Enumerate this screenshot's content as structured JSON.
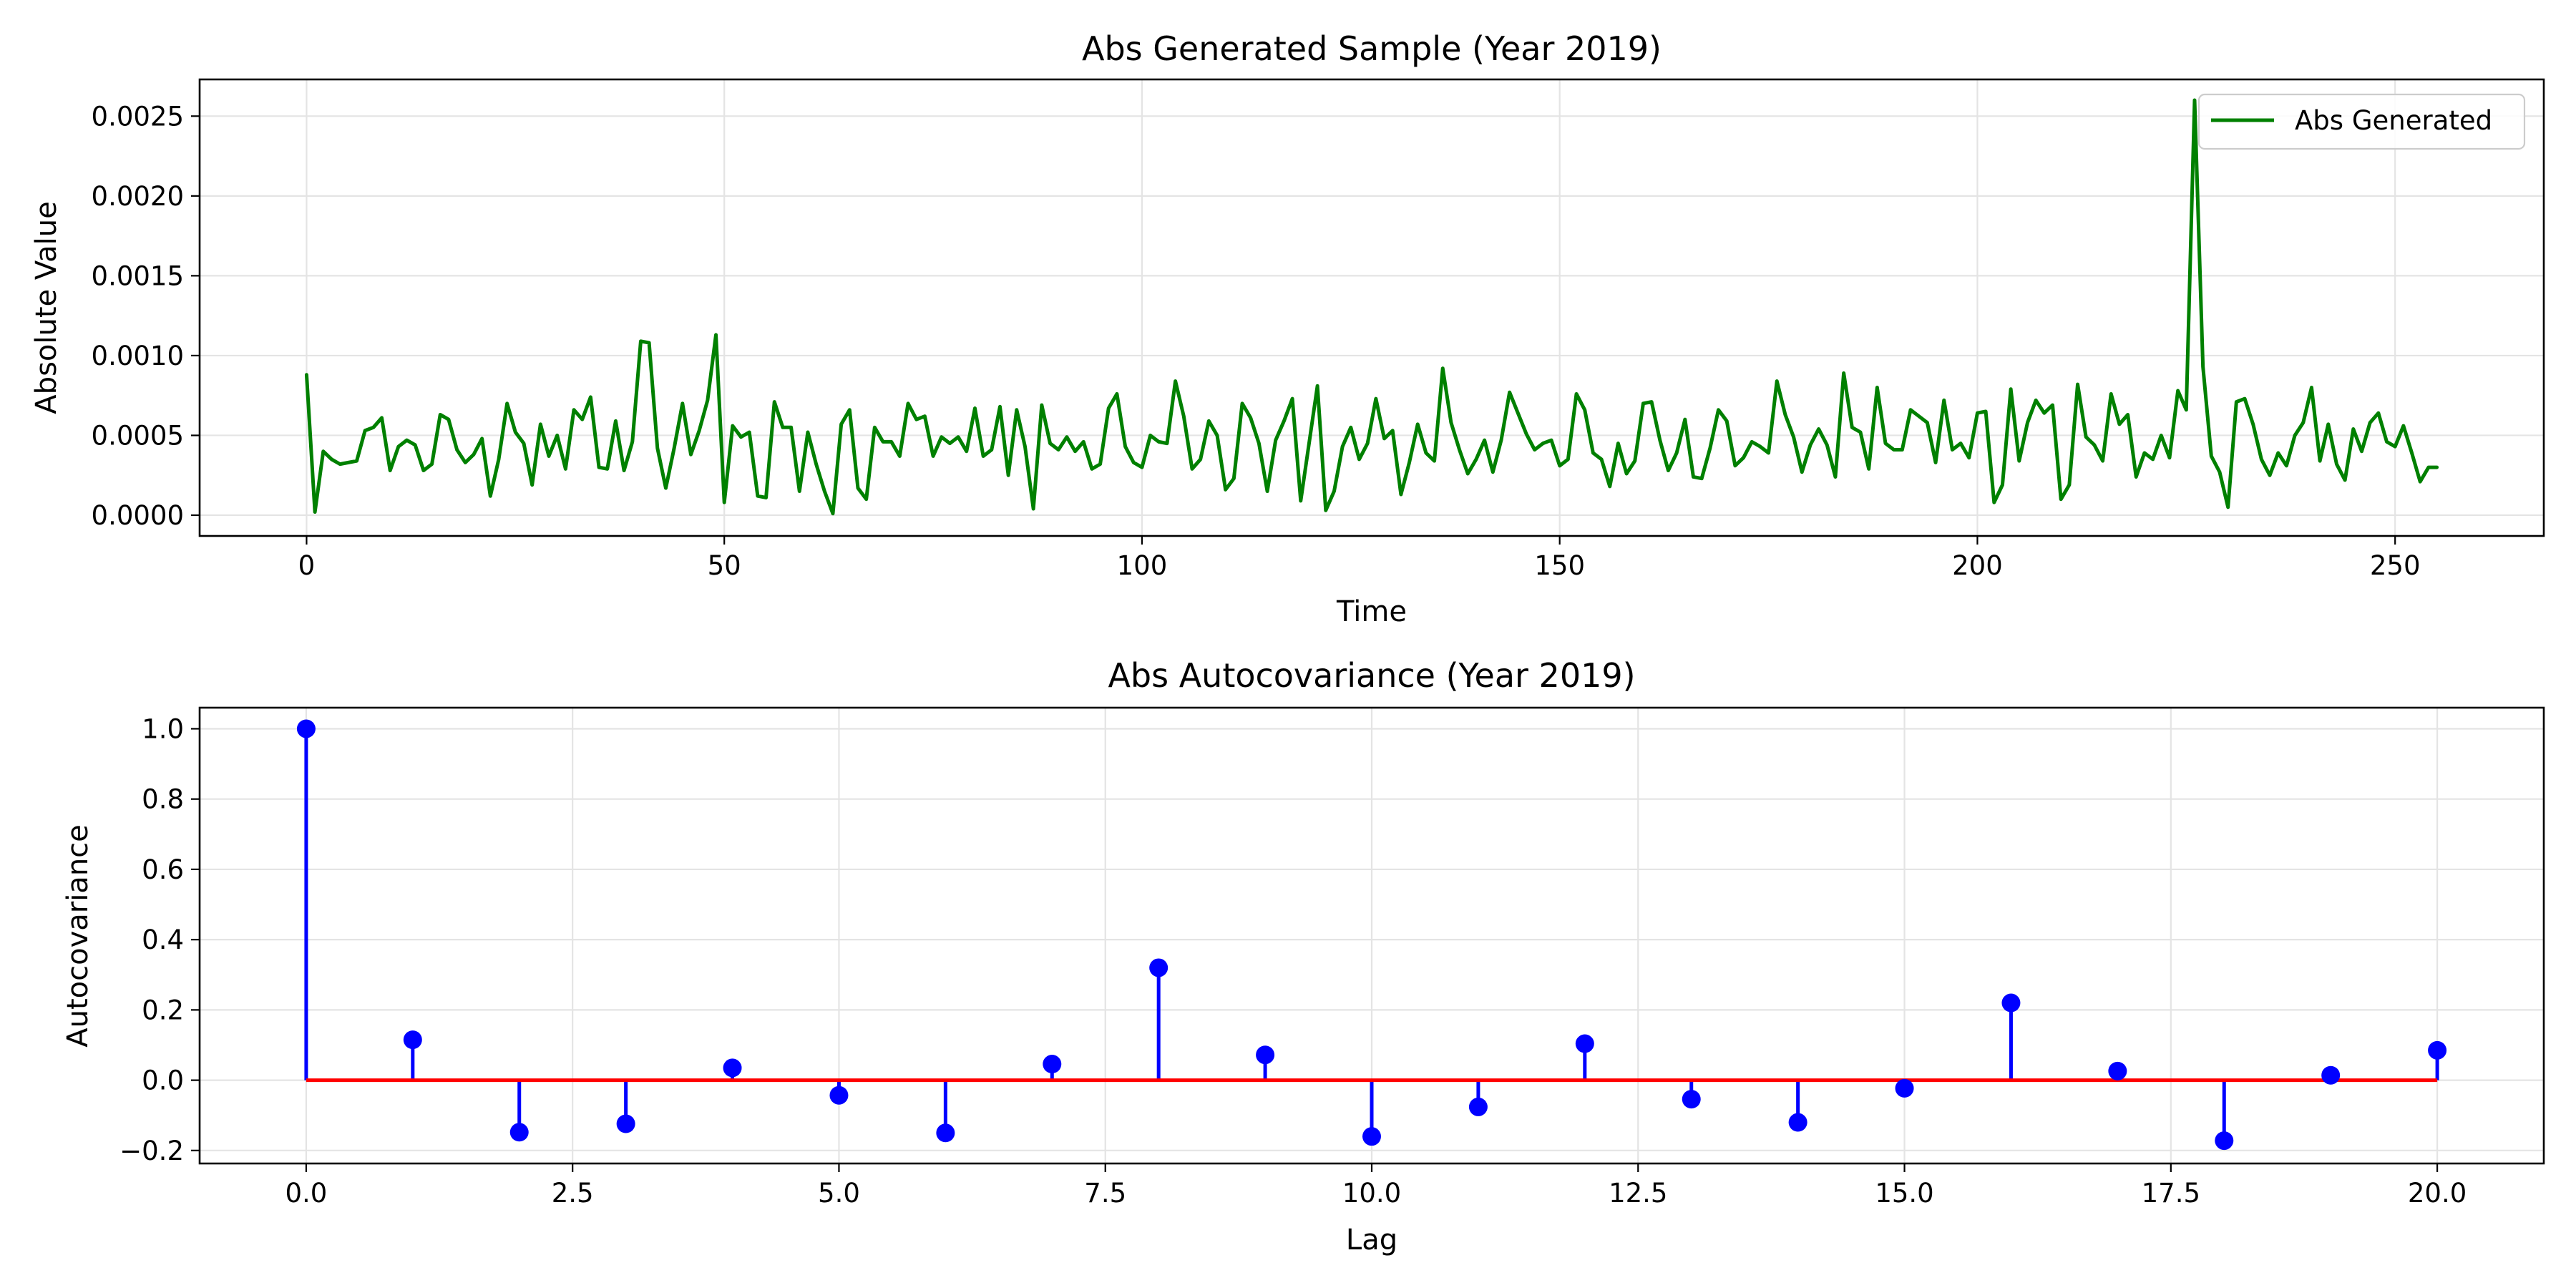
{
  "colors": {
    "line": "#008000",
    "stem": "#0000ff",
    "marker": "#0000ff",
    "baseline": "#ff0000"
  },
  "chart_data": [
    {
      "type": "line",
      "title": "Abs Generated Sample (Year 2019)",
      "xlabel": "Time",
      "ylabel": "Absolute Value",
      "xlim": [
        -12.8,
        267.8
      ],
      "ylim": [
        -0.00013,
        0.00273
      ],
      "x_ticks": [
        0,
        50,
        100,
        150,
        200,
        250
      ],
      "x_tick_labels": [
        "0",
        "50",
        "100",
        "150",
        "200",
        "250"
      ],
      "y_ticks": [
        0,
        0.0005,
        0.001,
        0.0015,
        0.002,
        0.0025
      ],
      "y_tick_labels": [
        "0.0000",
        "0.0005",
        "0.0010",
        "0.0015",
        "0.0020",
        "0.0025"
      ],
      "grid": true,
      "legend": {
        "position": "top-right",
        "entries": [
          "Abs Generated"
        ]
      },
      "series": [
        {
          "name": "Abs Generated",
          "x_start": 0,
          "x_step": 1,
          "values": [
            0.00088,
            2e-05,
            0.0004,
            0.00035,
            0.00032,
            0.00033,
            0.00034,
            0.00053,
            0.00055,
            0.00061,
            0.00028,
            0.00043,
            0.00047,
            0.00044,
            0.00028,
            0.00032,
            0.00063,
            0.0006,
            0.00041,
            0.00033,
            0.00038,
            0.00048,
            0.00012,
            0.00035,
            0.0007,
            0.00052,
            0.00045,
            0.00019,
            0.00057,
            0.00037,
            0.0005,
            0.00029,
            0.00066,
            0.0006,
            0.00074,
            0.0003,
            0.00029,
            0.00059,
            0.00028,
            0.00046,
            0.00109,
            0.00108,
            0.00042,
            0.00017,
            0.00042,
            0.0007,
            0.00038,
            0.00053,
            0.00072,
            0.00113,
            8e-05,
            0.00056,
            0.00049,
            0.00052,
            0.00012,
            0.00011,
            0.00071,
            0.00055,
            0.00055,
            0.00015,
            0.00052,
            0.00032,
            0.00015,
            1e-05,
            0.00057,
            0.00066,
            0.00017,
            0.0001,
            0.00055,
            0.00046,
            0.00046,
            0.00037,
            0.0007,
            0.0006,
            0.00062,
            0.00037,
            0.00049,
            0.00045,
            0.00049,
            0.0004,
            0.00067,
            0.00037,
            0.00041,
            0.00068,
            0.00025,
            0.00066,
            0.00043,
            4e-05,
            0.00069,
            0.00045,
            0.00041,
            0.00049,
            0.0004,
            0.00046,
            0.00029,
            0.00032,
            0.00067,
            0.00076,
            0.00043,
            0.00033,
            0.0003,
            0.0005,
            0.00046,
            0.00045,
            0.00084,
            0.00062,
            0.00029,
            0.00035,
            0.00059,
            0.0005,
            0.00016,
            0.00023,
            0.0007,
            0.00061,
            0.00045,
            0.00015,
            0.00047,
            0.00059,
            0.00073,
            9e-05,
            0.00045,
            0.00081,
            3e-05,
            0.00015,
            0.00043,
            0.00055,
            0.00035,
            0.00045,
            0.00073,
            0.00048,
            0.00053,
            0.00013,
            0.00033,
            0.00057,
            0.00039,
            0.00034,
            0.00092,
            0.00058,
            0.00041,
            0.00026,
            0.00035,
            0.00047,
            0.00027,
            0.00047,
            0.00077,
            0.00064,
            0.00051,
            0.00041,
            0.00045,
            0.00047,
            0.00031,
            0.00035,
            0.00076,
            0.00066,
            0.00039,
            0.00035,
            0.00018,
            0.00045,
            0.00026,
            0.00034,
            0.0007,
            0.00071,
            0.00047,
            0.00028,
            0.00039,
            0.0006,
            0.00024,
            0.00023,
            0.00042,
            0.00066,
            0.00059,
            0.00031,
            0.00036,
            0.00046,
            0.00043,
            0.00039,
            0.00084,
            0.00063,
            0.00049,
            0.00027,
            0.00044,
            0.00054,
            0.00044,
            0.00024,
            0.00089,
            0.00055,
            0.00052,
            0.00029,
            0.0008,
            0.00045,
            0.00041,
            0.00041,
            0.00066,
            0.00062,
            0.00058,
            0.00033,
            0.00072,
            0.00041,
            0.00045,
            0.00036,
            0.00064,
            0.00065,
            8e-05,
            0.00019,
            0.00079,
            0.00034,
            0.00058,
            0.00072,
            0.00064,
            0.00069,
            0.0001,
            0.00019,
            0.00082,
            0.00049,
            0.00044,
            0.00034,
            0.00076,
            0.00057,
            0.00063,
            0.00024,
            0.00039,
            0.00035,
            0.0005,
            0.00036,
            0.00078,
            0.00066,
            0.0026,
            0.00093,
            0.00037,
            0.00027,
            5e-05,
            0.00071,
            0.00073,
            0.00057,
            0.00035,
            0.00025,
            0.00039,
            0.00031,
            0.0005,
            0.00058,
            0.0008,
            0.00034,
            0.00057,
            0.00032,
            0.00022,
            0.00054,
            0.0004,
            0.00058,
            0.00064,
            0.00046,
            0.00043,
            0.00056,
            0.00039,
            0.00021,
            0.0003,
            0.0003
          ]
        }
      ]
    },
    {
      "type": "stem",
      "title": "Abs Autocovariance (Year 2019)",
      "xlabel": "Lag",
      "ylabel": "Autocovariance",
      "xlim": [
        -1.0,
        21.0
      ],
      "ylim": [
        -0.237,
        1.06
      ],
      "x_ticks": [
        0,
        2.5,
        5,
        7.5,
        10,
        12.5,
        15,
        17.5,
        20
      ],
      "x_tick_labels": [
        "0.0",
        "2.5",
        "5.0",
        "7.5",
        "10.0",
        "12.5",
        "15.0",
        "17.5",
        "20.0"
      ],
      "y_ticks": [
        -0.2,
        0,
        0.2,
        0.4,
        0.6,
        0.8,
        1.0
      ],
      "y_tick_labels": [
        "−0.2",
        "0.0",
        "0.2",
        "0.4",
        "0.6",
        "0.8",
        "1.0"
      ],
      "grid": true,
      "baseline": 0,
      "x": [
        0,
        1,
        2,
        3,
        4,
        5,
        6,
        7,
        8,
        9,
        10,
        11,
        12,
        13,
        14,
        15,
        16,
        17,
        18,
        19,
        20
      ],
      "values": [
        1.0,
        0.115,
        -0.148,
        -0.124,
        0.035,
        -0.043,
        -0.15,
        0.046,
        0.32,
        0.072,
        -0.16,
        -0.076,
        0.104,
        -0.054,
        -0.12,
        -0.023,
        0.22,
        0.026,
        -0.172,
        0.014,
        0.085
      ]
    }
  ]
}
